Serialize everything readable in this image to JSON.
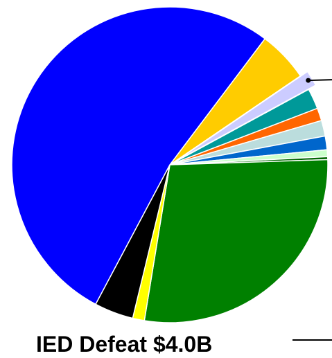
{
  "chart_data": {
    "type": "pie",
    "title": "",
    "start_angle_deg": 53,
    "slices": [
      {
        "value": 5.2,
        "color": "#ffcc00",
        "exploded": false
      },
      {
        "value": 1.6,
        "color": "#ccccff",
        "exploded": true,
        "leader": true
      },
      {
        "value": 2.1,
        "color": "#009999",
        "exploded": false
      },
      {
        "value": 1.3,
        "color": "#ff6600",
        "exploded": false
      },
      {
        "value": 1.6,
        "color": "#bbdddd",
        "exploded": false
      },
      {
        "value": 1.4,
        "color": "#0066cc",
        "exploded": false
      },
      {
        "value": 0.7,
        "color": "#ccffcc",
        "exploded": false
      },
      {
        "value": 0.3,
        "color": "#006600",
        "exploded": false
      },
      {
        "value": 28.1,
        "color": "#008000",
        "exploded": false,
        "label": "IED Defeat $4.0B"
      },
      {
        "value": 1.2,
        "color": "#ffff00",
        "exploded": false
      },
      {
        "value": 4.0,
        "color": "#000000",
        "exploded": false
      },
      {
        "value": 52.5,
        "color": "#0000ff",
        "exploded": false
      }
    ],
    "annotations": [
      "IED Defeat $4.0B"
    ],
    "legend": "none"
  }
}
